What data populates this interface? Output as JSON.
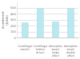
{
  "chart_data": {
    "type": "bar",
    "categories": [
      "Centrifugal\nelectric",
      "Centrifugal\nturbine\ndriven",
      "Absorption\nsteam\nsingle\neffect",
      "Absorption\nsteam\ndouble\neffect"
    ],
    "values": [
      260,
      500,
      280,
      500
    ],
    "color": "#b8e8f0",
    "ylabel": "Investment\n($/kW)",
    "ylim": [
      0,
      600
    ],
    "yticks": [
      0,
      100,
      200,
      300,
      400,
      500
    ],
    "grid": true
  }
}
